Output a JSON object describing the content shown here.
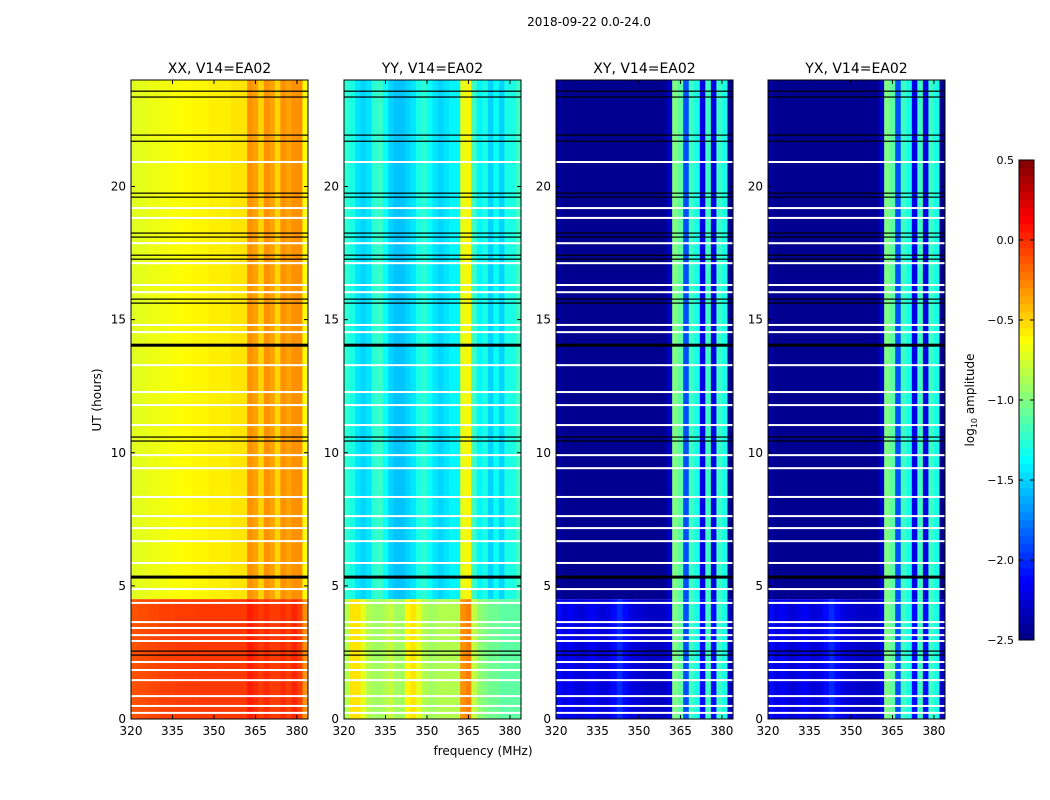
{
  "chart_data": {
    "type": "heatmap",
    "title": "2018-09-22 0.0-24.0",
    "xlabel": "frequency (MHz)",
    "ylabel": "UT (hours)",
    "xlim": [
      320,
      384
    ],
    "ylim": [
      0,
      24
    ],
    "xticks": [
      "320",
      "335",
      "350",
      "365",
      "380"
    ],
    "xtick_values": [
      320,
      335,
      350,
      365,
      380
    ],
    "yticks": [
      "0",
      "5",
      "10",
      "15",
      "20"
    ],
    "ytick_values": [
      0,
      5,
      10,
      15,
      20
    ],
    "freq_bin_mhz": 2,
    "early_period_end_hours": 4.5,
    "colorbar": {
      "label": "log10 amplitude",
      "range": [
        -2.5,
        0.5
      ],
      "colormap": "jet",
      "ticks": [
        "0.5",
        "0.0",
        "−0.5",
        "−1.0",
        "−1.5",
        "−2.0",
        "−2.5"
      ],
      "tick_values": [
        0.5,
        0.0,
        -0.5,
        -1.0,
        -1.5,
        -2.0,
        -2.5
      ]
    },
    "panels": [
      {
        "title": "XX, V14=EA02",
        "day": [
          -0.72,
          -0.7,
          -0.7,
          -0.68,
          -0.68,
          -0.66,
          -0.66,
          -0.64,
          -0.64,
          -0.62,
          -0.62,
          -0.6,
          -0.6,
          -0.6,
          -0.58,
          -0.58,
          -0.58,
          -0.58,
          -0.55,
          -0.55,
          -0.55,
          -0.3,
          -0.35,
          -0.5,
          -0.3,
          -0.35,
          -0.5,
          -0.3,
          -0.35,
          -0.3,
          -0.3,
          -0.62
        ],
        "early": [
          -0.12,
          -0.1,
          -0.1,
          -0.08,
          -0.08,
          -0.06,
          -0.06,
          -0.06,
          -0.05,
          -0.05,
          -0.05,
          -0.05,
          -0.04,
          -0.04,
          -0.04,
          -0.04,
          -0.04,
          -0.04,
          -0.04,
          -0.04,
          -0.04,
          0.05,
          0.0,
          -0.05,
          0.0,
          -0.05,
          -0.05,
          0.0,
          -0.05,
          0.02,
          -0.05,
          -0.3
        ]
      },
      {
        "title": "YY, V14=EA02",
        "day": [
          -1.25,
          -1.3,
          -1.45,
          -1.5,
          -1.45,
          -1.25,
          -1.2,
          -1.35,
          -1.5,
          -1.55,
          -1.55,
          -1.5,
          -1.45,
          -1.3,
          -1.25,
          -1.35,
          -1.45,
          -1.5,
          -1.45,
          -1.4,
          -1.4,
          -0.7,
          -0.6,
          -1.2,
          -1.4,
          -1.3,
          -1.5,
          -1.35,
          -1.5,
          -1.3,
          -1.3,
          -1.2
        ],
        "early": [
          -0.85,
          -0.55,
          -0.55,
          -0.7,
          -0.85,
          -0.9,
          -0.9,
          -0.85,
          -0.8,
          -0.9,
          -0.9,
          -0.6,
          -0.55,
          -0.7,
          -0.85,
          -0.9,
          -0.9,
          -0.85,
          -0.85,
          -0.85,
          -0.85,
          -0.3,
          -0.25,
          -0.8,
          -0.95,
          -1.0,
          -1.05,
          -1.05,
          -1.1,
          -1.1,
          -1.1,
          -1.1
        ]
      },
      {
        "title": "XY, V14=EA02",
        "day": [
          -2.4,
          -2.45,
          -2.45,
          -2.45,
          -2.45,
          -2.45,
          -2.45,
          -2.45,
          -2.45,
          -2.45,
          -2.45,
          -2.45,
          -2.45,
          -2.45,
          -2.45,
          -2.45,
          -2.45,
          -2.45,
          -2.45,
          -2.45,
          -2.3,
          -1.0,
          -1.1,
          -1.9,
          -1.2,
          -1.3,
          -2.2,
          -1.2,
          -2.2,
          -1.2,
          -1.3,
          -2.45
        ],
        "early": [
          -2.1,
          -2.2,
          -2.15,
          -2.2,
          -2.25,
          -2.2,
          -2.15,
          -2.2,
          -2.25,
          -2.2,
          -2.1,
          -2.0,
          -2.1,
          -2.2,
          -2.25,
          -2.25,
          -2.3,
          -2.3,
          -2.3,
          -2.3,
          -2.2,
          -1.0,
          -1.1,
          -1.9,
          -1.2,
          -1.3,
          -2.1,
          -1.2,
          -2.1,
          -1.2,
          -1.3,
          -2.3
        ]
      },
      {
        "title": "YX, V14=EA02",
        "day": [
          -2.4,
          -2.45,
          -2.45,
          -2.45,
          -2.45,
          -2.45,
          -2.45,
          -2.45,
          -2.45,
          -2.45,
          -2.45,
          -2.45,
          -2.45,
          -2.45,
          -2.45,
          -2.45,
          -2.45,
          -2.45,
          -2.45,
          -2.45,
          -2.3,
          -1.0,
          -1.1,
          -1.9,
          -1.2,
          -1.3,
          -2.2,
          -1.2,
          -2.2,
          -1.2,
          -1.3,
          -2.45
        ],
        "early": [
          -2.1,
          -2.2,
          -2.15,
          -2.2,
          -2.25,
          -2.2,
          -2.15,
          -2.2,
          -2.25,
          -2.2,
          -2.1,
          -2.0,
          -2.1,
          -2.2,
          -2.25,
          -2.25,
          -2.3,
          -2.3,
          -2.3,
          -2.3,
          -2.2,
          -1.0,
          -1.1,
          -1.9,
          -1.2,
          -1.3,
          -2.1,
          -1.2,
          -2.1,
          -1.2,
          -1.3,
          -2.3
        ]
      }
    ],
    "flagged_white_hours": [
      20.92,
      19.19,
      18.82,
      17.87,
      17.12,
      16.3,
      16.03,
      14.8,
      14.53,
      13.29,
      12.28,
      11.79,
      11.04,
      9.91,
      9.42,
      8.34,
      7.62,
      7.17,
      6.68,
      5.86,
      4.88,
      4.36,
      3.64,
      3.42,
      3.15,
      2.93,
      2.14,
      1.84,
      1.46,
      0.86,
      0.49,
      0.23
    ],
    "scan_boundary_black_hours": [
      23.58,
      23.36,
      21.93,
      21.7,
      19.75,
      19.6,
      18.25,
      18.1,
      17.42,
      17.27,
      15.77,
      15.62,
      14.04,
      10.59,
      10.44,
      5.33,
      2.55,
      2.4
    ]
  }
}
